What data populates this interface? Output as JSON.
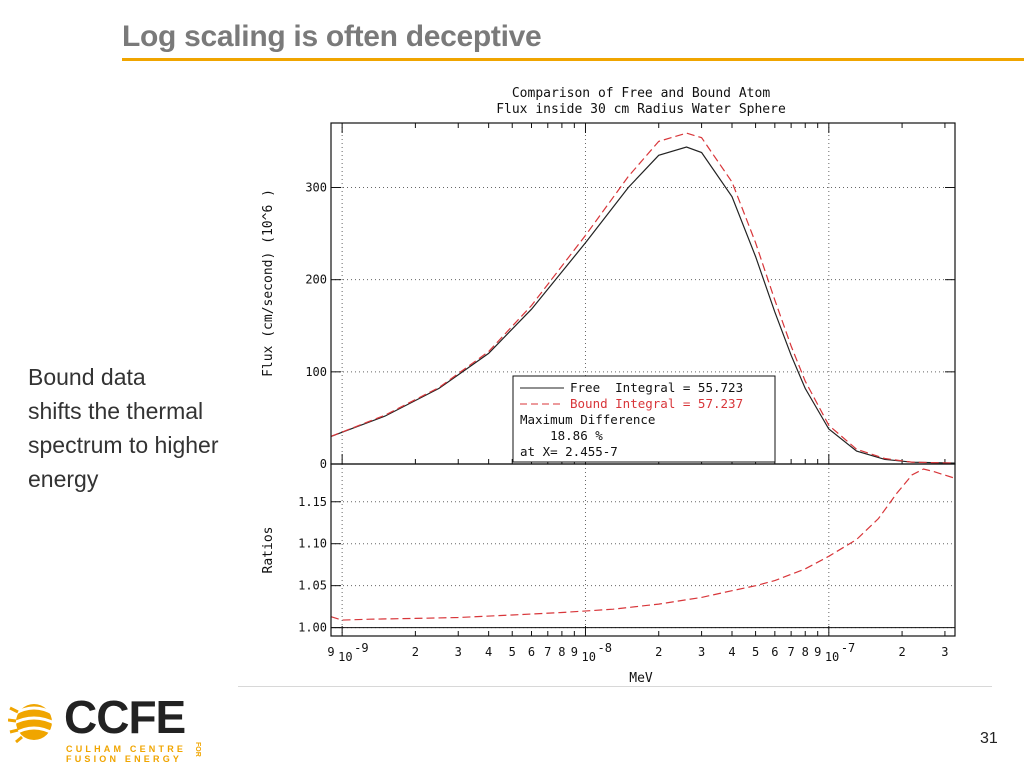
{
  "slide": {
    "title": "Log scaling is often deceptive",
    "side_text": [
      "Bound data",
      "shifts the thermal",
      "spectrum to higher",
      "energy"
    ],
    "page_number": "31",
    "accent_color": "#f0a500"
  },
  "logo": {
    "word": "CCFE",
    "line1": "CULHAM CENTRE",
    "line2": "FUSION ENERGY",
    "vertical": "FOR"
  },
  "chart_data": [
    {
      "type": "line",
      "title": [
        "Comparison of Free and Bound Atom",
        "Flux inside 30 cm Radius Water Sphere"
      ],
      "xlabel": "",
      "ylabel": "Flux (cm/second) (10^6 )",
      "x_scale": "log",
      "xlim": [
        9e-10,
        3.3e-07
      ],
      "ylim": [
        0,
        370
      ],
      "yticks": [
        0,
        100,
        200,
        300
      ],
      "grid": true,
      "series": [
        {
          "name": "Free  Integral = 55.723",
          "color": "#222222",
          "dash": "solid",
          "x": [
            9e-10,
            1.5e-09,
            2.5e-09,
            4e-09,
            6e-09,
            1e-08,
            1.5e-08,
            2e-08,
            2.6e-08,
            3e-08,
            4e-08,
            5e-08,
            6e-08,
            7e-08,
            8e-08,
            1e-07,
            1.3e-07,
            1.7e-07,
            2.2e-07,
            3.3e-07
          ],
          "y": [
            30,
            52,
            82,
            120,
            168,
            240,
            300,
            335,
            344,
            338,
            290,
            225,
            165,
            118,
            82,
            38,
            14,
            5,
            2,
            1
          ]
        },
        {
          "name": "Bound Integral = 57.237",
          "color": "#d8363a",
          "dash": "dashed",
          "x": [
            9e-10,
            1.5e-09,
            2.5e-09,
            4e-09,
            6e-09,
            1e-08,
            1.5e-08,
            2e-08,
            2.6e-08,
            3e-08,
            4e-08,
            5e-08,
            6e-08,
            7e-08,
            8e-08,
            1e-07,
            1.3e-07,
            1.7e-07,
            2.2e-07,
            3.3e-07
          ],
          "y": [
            30,
            53,
            83,
            122,
            172,
            248,
            312,
            350,
            359,
            354,
            306,
            240,
            178,
            128,
            90,
            42,
            16,
            6,
            2,
            1
          ]
        }
      ],
      "legend": {
        "position": "lower-right",
        "lines": [
          "Maximum Difference",
          "    18.86 %",
          "at X= 2.455-7"
        ]
      }
    },
    {
      "type": "line",
      "ylabel": "Ratios",
      "xlabel": "MeV",
      "x_scale": "log",
      "xlim": [
        9e-10,
        3.3e-07
      ],
      "ylim": [
        0.99,
        1.195
      ],
      "yticks": [
        1.0,
        1.05,
        1.1,
        1.15
      ],
      "ytick_labels": [
        "1.00",
        "1.05",
        "1.10",
        "1.15"
      ],
      "xtick_labels": [
        {
          "x": 9e-10,
          "label": "9"
        },
        {
          "x": 1e-09,
          "label": "10",
          "exp": "-9"
        },
        {
          "x": 2e-09,
          "label": "2"
        },
        {
          "x": 3e-09,
          "label": "3"
        },
        {
          "x": 4e-09,
          "label": "4"
        },
        {
          "x": 5e-09,
          "label": "5"
        },
        {
          "x": 6e-09,
          "label": "6"
        },
        {
          "x": 7e-09,
          "label": "7"
        },
        {
          "x": 8e-09,
          "label": "8"
        },
        {
          "x": 9e-09,
          "label": "9"
        },
        {
          "x": 1e-08,
          "label": "10",
          "exp": "-8"
        },
        {
          "x": 2e-08,
          "label": "2"
        },
        {
          "x": 3e-08,
          "label": "3"
        },
        {
          "x": 4e-08,
          "label": "4"
        },
        {
          "x": 5e-08,
          "label": "5"
        },
        {
          "x": 6e-08,
          "label": "6"
        },
        {
          "x": 7e-08,
          "label": "7"
        },
        {
          "x": 8e-08,
          "label": "8"
        },
        {
          "x": 9e-08,
          "label": "9"
        },
        {
          "x": 1e-07,
          "label": "10",
          "exp": "-7"
        },
        {
          "x": 2e-07,
          "label": "2"
        },
        {
          "x": 3e-07,
          "label": "3"
        }
      ],
      "grid": true,
      "reference_line": 1.0,
      "series": [
        {
          "color": "#d8363a",
          "dash": "dashed",
          "x": [
            9e-10,
            1e-09,
            1.3e-09,
            2e-09,
            3e-09,
            5e-09,
            8e-09,
            1.3e-08,
            2e-08,
            3e-08,
            4e-08,
            5e-08,
            6e-08,
            8e-08,
            1e-07,
            1.3e-07,
            1.6e-07,
            1.9e-07,
            2.2e-07,
            2.45e-07,
            2.7e-07,
            3.3e-07
          ],
          "y": [
            1.013,
            1.009,
            1.01,
            1.011,
            1.012,
            1.015,
            1.018,
            1.022,
            1.028,
            1.036,
            1.044,
            1.05,
            1.056,
            1.07,
            1.085,
            1.105,
            1.13,
            1.16,
            1.182,
            1.189,
            1.186,
            1.178
          ]
        }
      ]
    }
  ]
}
